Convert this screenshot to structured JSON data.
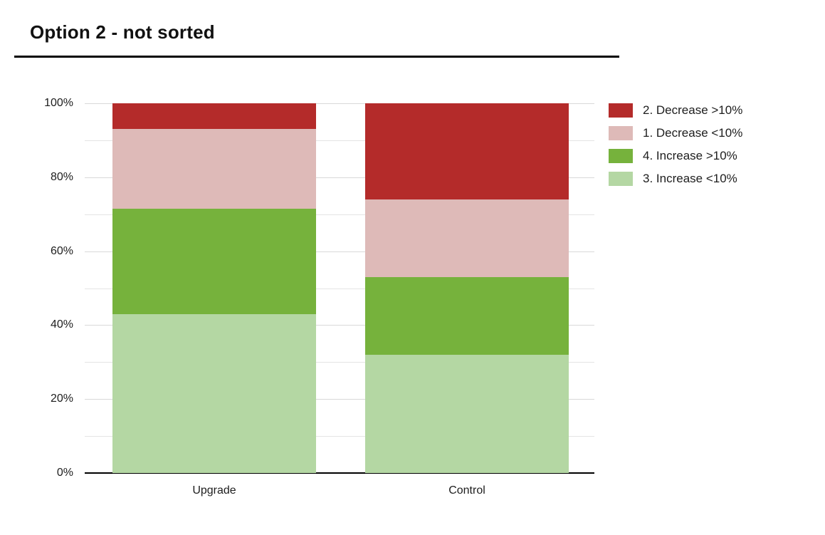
{
  "chart_data": {
    "type": "bar",
    "variant": "stacked-100-percent-column",
    "title": "Option 2 - not sorted",
    "categories": [
      "Upgrade",
      "Control"
    ],
    "series": [
      {
        "name": "3. Increase <10%",
        "color": "#b4d7a3",
        "values": [
          43,
          32
        ]
      },
      {
        "name": "4. Increase >10%",
        "color": "#76b23c",
        "values": [
          28.5,
          21
        ]
      },
      {
        "name": "1. Decrease <10%",
        "color": "#debab8",
        "values": [
          21.5,
          21
        ]
      },
      {
        "name": "2. Decrease >10%",
        "color": "#b42b2a",
        "values": [
          7,
          26
        ]
      }
    ],
    "stack_order_note": "series listed bottom-to-top of each column",
    "legend_order": [
      "2. Decrease >10%",
      "1. Decrease <10%",
      "4. Increase >10%",
      "3. Increase <10%"
    ],
    "legend_position": "right-top",
    "xlabel": "",
    "ylabel": "",
    "ylim": [
      0,
      100
    ],
    "y_tick_labels": [
      "0%",
      "20%",
      "40%",
      "60%",
      "80%",
      "100%"
    ],
    "y_major_tick_step": 20,
    "y_minor_gridline_step": 10,
    "grid": "horizontal gridlines on, vertical off",
    "colors": {
      "major_gridline": "#d9d9d9",
      "minor_gridline": "#e4e4e4",
      "axis_baseline": "#000000",
      "text": "#1d1d1d",
      "title_text": "#111111",
      "title_rule": "#000000",
      "background": "#ffffff"
    }
  }
}
